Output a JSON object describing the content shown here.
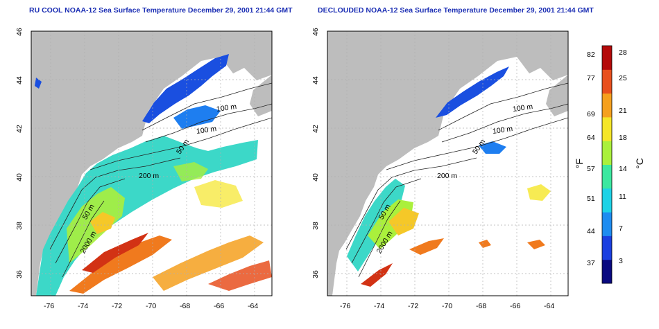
{
  "left_panel": {
    "title": "RU COOL NOAA-12 Sea Surface Temperature December 29, 2001 21:44 GMT",
    "lat_ticks": [
      "46",
      "44",
      "42",
      "40",
      "38",
      "36"
    ],
    "lon_ticks": [
      "-76",
      "-74",
      "-72",
      "-70",
      "-68",
      "-66",
      "-64"
    ],
    "contour_labels": [
      "100 m",
      "100 m",
      "50 m",
      "200 m",
      "50 m",
      "2000 m"
    ]
  },
  "right_panel": {
    "title": "DECLOUDED NOAA-12 Sea Surface Temperature December 29, 2001 21:44 GMT",
    "lat_ticks": [
      "46",
      "44",
      "42",
      "40",
      "38",
      "36"
    ],
    "lon_ticks": [
      "-76",
      "-74",
      "-72",
      "-70",
      "-68",
      "-66",
      "-64"
    ],
    "contour_labels": [
      "100 m",
      "100 m",
      "50 m",
      "200 m",
      "50 m",
      "2000 m"
    ]
  },
  "colorbar": {
    "fahrenheit_label": "°F",
    "celsius_label": "°C",
    "fahrenheit_ticks": [
      "82",
      "77",
      "69",
      "64",
      "57",
      "51",
      "44",
      "37"
    ],
    "celsius_ticks": [
      "28",
      "25",
      "21",
      "18",
      "14",
      "11",
      "7",
      "3"
    ],
    "colors": [
      "#0a0a80",
      "#1a3fe0",
      "#1e8cf0",
      "#1ed2e6",
      "#3ce8a0",
      "#aaf03c",
      "#f5e628",
      "#f5a01e",
      "#e8501e",
      "#b40a0a"
    ]
  },
  "colors": {
    "land": "#bdbdbd",
    "title": "#1c2fb4",
    "grid": "#b0b0b0"
  }
}
